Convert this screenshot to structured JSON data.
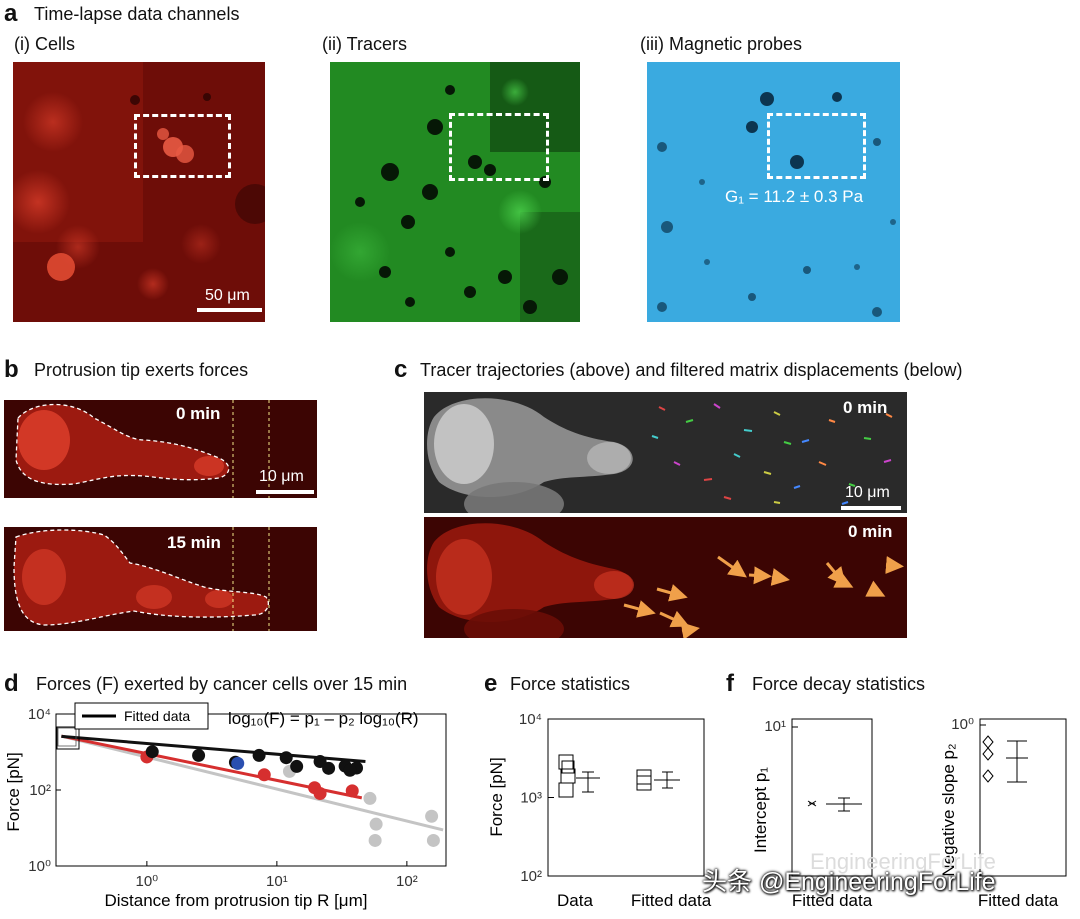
{
  "panel_a": {
    "label": "a",
    "title": "Time-lapse data channels",
    "sub_i": "(i) Cells",
    "sub_ii": "(ii) Tracers",
    "sub_iii": "(iii) Magnetic probes",
    "scalebar": "50 μm",
    "modulus": "G₁ = 11.2 ± 0.3 Pa"
  },
  "panel_b": {
    "label": "b",
    "title": "Protrusion tip exerts forces",
    "time_top": "0 min",
    "time_bottom": "15 min",
    "scalebar": "10 μm"
  },
  "panel_c": {
    "label": "c",
    "title": "Tracer trajectories (above) and filtered matrix displacements (below)",
    "time_top": "0 min",
    "time_bottom": "0 min",
    "scalebar": "10 μm"
  },
  "panel_d": {
    "label": "d",
    "title": "Forces (F) exerted by cancer cells over 15 min",
    "legend": "Fitted data",
    "equation": "log₁₀(F) = p₁ – p₂ log₁₀(R)",
    "ylabel": "Force [pN]",
    "xlabel": "Distance from protrusion tip R [μm]"
  },
  "panel_e": {
    "label": "e",
    "title": "Force statistics",
    "ylabel": "Force [pN]"
  },
  "panel_f": {
    "label": "f",
    "title": "Force decay statistics",
    "ylabel1": "Intercept  p₁",
    "ylabel2": "Negative slope  p₂"
  },
  "colors": {
    "black_series": "#111111",
    "red_series": "#d62f2f",
    "grey_series": "#c4c4c4",
    "blue_point": "#2a4fb0",
    "cells_red": "#8a120c",
    "tracers_green": "#2d9a2d",
    "probes_blue": "#36a9de",
    "arrow_orange": "#f0a04a"
  },
  "watermark": {
    "faded": "EngineeringForLife",
    "text": "头条 @EngineeringForLife"
  },
  "chart_data": [
    {
      "type": "scatter",
      "panel": "d",
      "xlabel": "Distance from protrusion tip R [μm]",
      "ylabel": "Force [pN]",
      "xscale": "log",
      "yscale": "log",
      "xlim": [
        0.2,
        200
      ],
      "ylim": [
        1,
        10000
      ],
      "xticks": [
        "10⁰",
        "10¹",
        "10²"
      ],
      "yticks": [
        "10⁰",
        "10²",
        "10⁴"
      ],
      "legend": "top-left",
      "series": [
        {
          "color": "#111111",
          "x": [
            1.1,
            2.5,
            4.8,
            7.3,
            11.8,
            14.2,
            21.5,
            25.0,
            33.5,
            41.0,
            36.5
          ],
          "y": [
            1019,
            813,
            537,
            813,
            708,
            417,
            562,
            372,
            427,
            380,
            331
          ]
        },
        {
          "color": "#2a4fb0",
          "x": [
            5.0
          ],
          "y": [
            501
          ]
        },
        {
          "color": "#d62f2f",
          "x": [
            1.0,
            8.0,
            19.5,
            21.5,
            38.0
          ],
          "y": [
            741,
            251,
            115,
            81,
            95
          ]
        },
        {
          "color": "#c4c4c4",
          "x": [
            12.5,
            52.0,
            58.0,
            155.0,
            160.0,
            57.0
          ],
          "y": [
            309,
            60,
            12.6,
            20.4,
            4.7,
            4.7
          ]
        }
      ],
      "fits": [
        {
          "color": "#111111",
          "x": [
            0.22,
            48
          ],
          "y": [
            2570,
            562
          ]
        },
        {
          "color": "#d62f2f",
          "x": [
            0.22,
            45
          ],
          "y": [
            2630,
            62
          ]
        },
        {
          "color": "#c4c4c4",
          "x": [
            0.22,
            190
          ],
          "y": [
            2630,
            8.9
          ]
        }
      ]
    },
    {
      "type": "box",
      "panel": "e",
      "ylabel": "Force [pN]",
      "yscale": "log",
      "ylim": [
        100,
        10000
      ],
      "yticks": [
        "10²",
        "10³",
        "10⁴"
      ],
      "categories": [
        "Data",
        "Fitted data"
      ],
      "values": [
        1700,
        1740
      ]
    },
    {
      "type": "scatter",
      "panel": "f-intercept",
      "ylabel": "Intercept  p₁",
      "yticks": [
        "10¹"
      ],
      "categories": [
        "Fitted data"
      ],
      "values": [
        3.3
      ]
    },
    {
      "type": "scatter",
      "panel": "f-slope",
      "ylabel": "Negative slope  p₂",
      "yticks": [
        "10⁰"
      ],
      "categories": [
        "Fitted data"
      ],
      "values": [
        0.58
      ]
    }
  ]
}
